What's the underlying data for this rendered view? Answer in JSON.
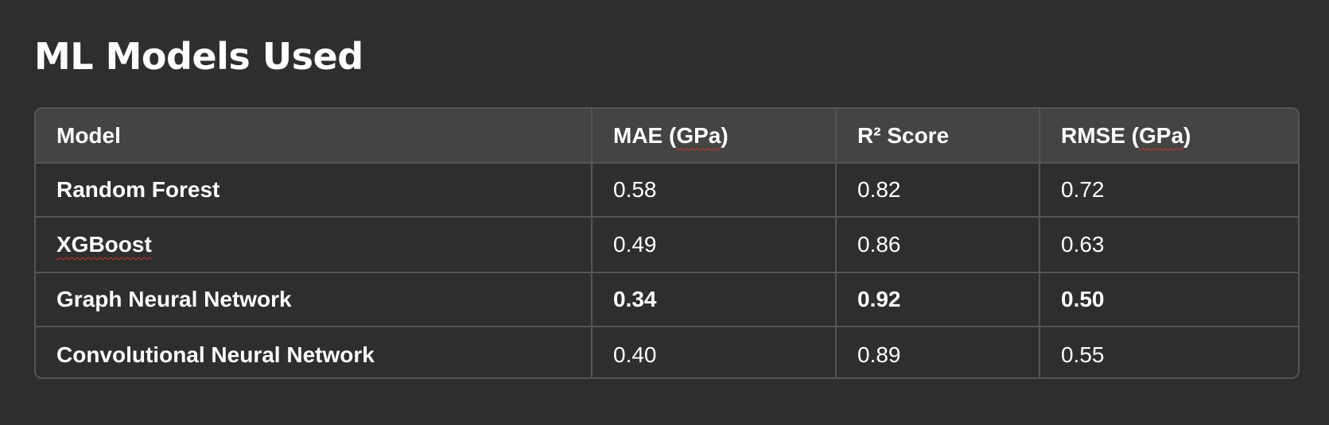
{
  "title": "ML Models Used",
  "table": {
    "headers": {
      "model": "Model",
      "mae_prefix": "MAE (",
      "mae_unit": "GPa",
      "mae_suffix": ")",
      "r2": "R² Score",
      "rmse_prefix": "RMSE (",
      "rmse_unit": "GPa",
      "rmse_suffix": ")"
    },
    "rows": [
      {
        "model": "Random Forest",
        "mae": "0.58",
        "r2": "0.82",
        "rmse": "0.72"
      },
      {
        "model": "XGBoost",
        "mae": "0.49",
        "r2": "0.86",
        "rmse": "0.63"
      },
      {
        "model": "Graph Neural Network",
        "mae": "0.34",
        "r2": "0.92",
        "rmse": "0.50"
      },
      {
        "model": "Convolutional Neural Network",
        "mae": "0.40",
        "r2": "0.89",
        "rmse": "0.55"
      }
    ]
  },
  "colors": {
    "background": "#2e2e2e",
    "header_background": "#444444",
    "border": "#555555",
    "spellcheck_underline": "#d03030"
  }
}
